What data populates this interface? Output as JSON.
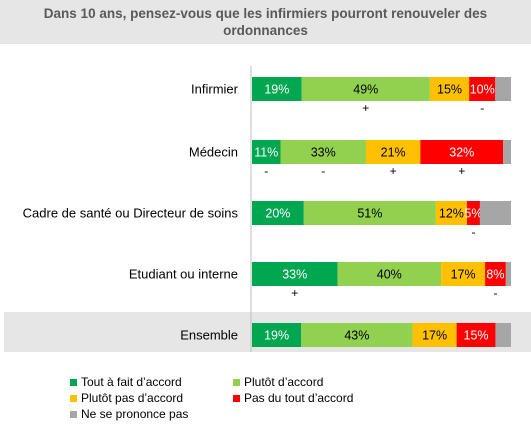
{
  "chart_data": {
    "type": "bar",
    "orientation": "horizontal-stacked-100",
    "title": "Dans 10 ans, pensez-vous que les infirmiers pourront renouveler des ordonnances",
    "categories": [
      "Infirmier",
      "Médecin",
      "Cadre de santé ou Directeur de soins",
      "Etudiant ou interne",
      "Ensemble"
    ],
    "series": [
      {
        "name": "Tout à fait d’accord",
        "color": "#00a650",
        "values": [
          19,
          11,
          20,
          33,
          19
        ],
        "labels": [
          "19%",
          "11%",
          "20%",
          "33%",
          "19%"
        ],
        "label_color": "#ffffff"
      },
      {
        "name": "Plutôt d’accord",
        "color": "#92d050",
        "values": [
          49,
          33,
          51,
          40,
          43
        ],
        "labels": [
          "49%",
          "33%",
          "51%",
          "40%",
          "43%"
        ],
        "label_color": "#000000"
      },
      {
        "name": "Plutôt pas d’accord",
        "color": "#ffc000",
        "values": [
          15,
          21,
          12,
          17,
          17
        ],
        "labels": [
          "15%",
          "21%",
          "12%",
          "17%",
          "17%"
        ],
        "label_color": "#000000"
      },
      {
        "name": "Pas du tout d’accord",
        "color": "#ff0000",
        "values": [
          10,
          32,
          5,
          8,
          15
        ],
        "labels": [
          "10%",
          "32%",
          "5%",
          "8%",
          "15%"
        ],
        "label_color": "#ffffff"
      },
      {
        "name": "Ne se prononce pas",
        "color": "#a6a6a6",
        "values": [
          6,
          3,
          12,
          2,
          6
        ],
        "labels": [
          "",
          "",
          "",
          "",
          ""
        ],
        "label_color": "#000000"
      }
    ],
    "significance_marks": [
      {
        "category": "Infirmier",
        "series": "Plutôt d’accord",
        "mark": "+"
      },
      {
        "category": "Infirmier",
        "series": "Pas du tout d’accord",
        "mark": "-"
      },
      {
        "category": "Médecin",
        "series": "Tout à fait d’accord",
        "mark": "-"
      },
      {
        "category": "Médecin",
        "series": "Plutôt d’accord",
        "mark": "-"
      },
      {
        "category": "Médecin",
        "series": "Plutôt pas d’accord",
        "mark": "+"
      },
      {
        "category": "Médecin",
        "series": "Pas du tout d’accord",
        "mark": "+"
      },
      {
        "category": "Cadre de santé ou Directeur de soins",
        "series": "Pas du tout d’accord",
        "mark": "-"
      },
      {
        "category": "Etudiant ou interne",
        "series": "Tout à fait d’accord",
        "mark": "+"
      },
      {
        "category": "Etudiant ou interne",
        "series": "Pas du tout d’accord",
        "mark": "-"
      }
    ],
    "highlighted_category": "Ensemble",
    "legend_position": "bottom-left",
    "grid": false
  }
}
